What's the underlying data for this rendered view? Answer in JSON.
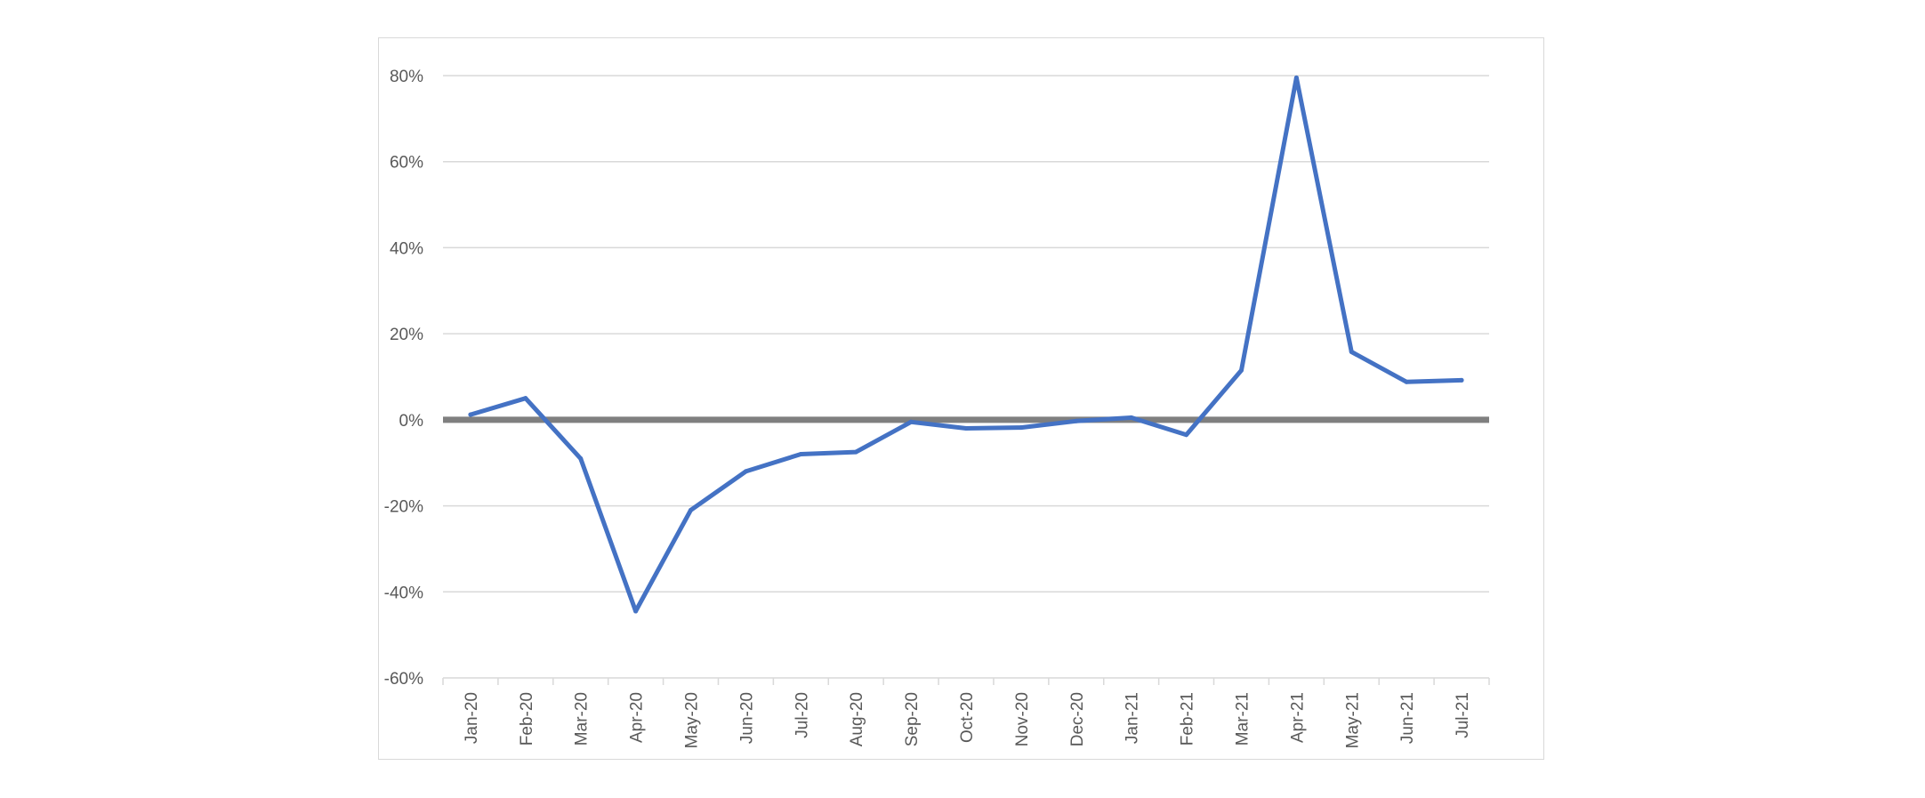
{
  "chart_data": {
    "type": "line",
    "categories": [
      "Jan-20",
      "Feb-20",
      "Mar-20",
      "Apr-20",
      "May-20",
      "Jun-20",
      "Jul-20",
      "Aug-20",
      "Sep-20",
      "Oct-20",
      "Nov-20",
      "Dec-20",
      "Jan-21",
      "Feb-21",
      "Mar-21",
      "Apr-21",
      "May-21",
      "Jun-21",
      "Jul-21"
    ],
    "series": [
      {
        "values": [
          1.2,
          5.0,
          -9.0,
          -44.5,
          -21.0,
          -12.0,
          -8.0,
          -7.5,
          -0.5,
          -2.0,
          -1.8,
          -0.3,
          0.5,
          -3.5,
          11.5,
          79.5,
          15.8,
          8.8,
          9.2
        ]
      }
    ],
    "title": "",
    "xlabel": "",
    "ylabel": "",
    "ylim": [
      -60,
      80
    ],
    "yticks": [
      80,
      60,
      40,
      20,
      0,
      -20,
      -40,
      -60
    ],
    "ytick_labels": [
      "80%",
      "60%",
      "40%",
      "20%",
      "0%",
      "-20%",
      "-40%",
      "-60%"
    ],
    "grid": true,
    "legend": "none",
    "colors": {
      "series": "#4472C4",
      "zero_line": "#7f7f7f",
      "grid": "#d9d9d9",
      "text": "#595959"
    }
  }
}
